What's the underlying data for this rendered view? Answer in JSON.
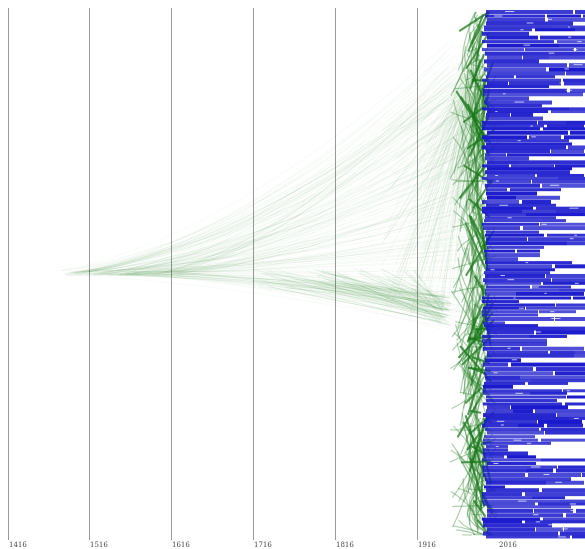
{
  "timeline": {
    "axes": [
      {
        "label": "1416"
      },
      {
        "label": "1516"
      },
      {
        "label": "1616"
      },
      {
        "label": "1716"
      },
      {
        "label": "1816"
      },
      {
        "label": "1916"
      },
      {
        "label": "2016"
      }
    ]
  },
  "colors": {
    "background": "#ffffff",
    "axis": "#9a9a9a",
    "edge": "#1a7a1a",
    "label_block": "#1a1acc",
    "label_text": "#ffffff"
  }
}
